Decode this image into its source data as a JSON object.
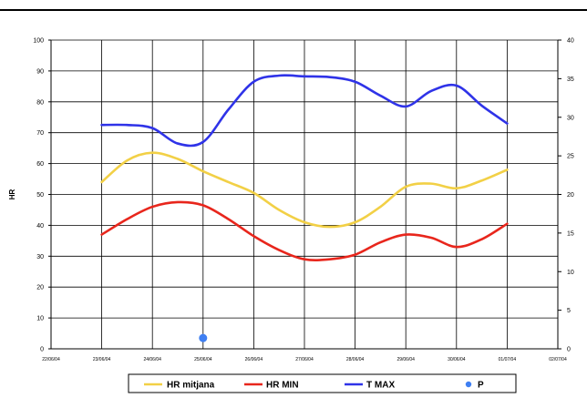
{
  "chart_data": {
    "type": "line",
    "categories": [
      "22/06/04",
      "23/06/04",
      "24/06/04",
      "25/06/04",
      "26/06/04",
      "27/06/04",
      "28/06/04",
      "29/06/04",
      "30/06/04",
      "01/07/04",
      "02/07/04"
    ],
    "ylabel": "HR",
    "ylim": [
      0,
      100
    ],
    "y_ticks": [
      "0",
      "10",
      "20",
      "30",
      "40",
      "50",
      "60",
      "70",
      "80",
      "90",
      "100"
    ],
    "y2lim": [
      0,
      40
    ],
    "y2_ticks": [
      "0",
      "5",
      "10",
      "15",
      "20",
      "25",
      "30",
      "35",
      "40"
    ],
    "grid": true,
    "legend_position": "bottom",
    "series": [
      {
        "name": "HR mitjana",
        "axis": "left",
        "color": "#f2d046",
        "x": [
          1,
          1.5,
          2,
          2.5,
          3,
          3.5,
          4,
          4.5,
          5,
          5.5,
          6,
          6.5,
          7,
          7.5,
          8,
          8.5,
          9
        ],
        "values": [
          54,
          61,
          63.5,
          61.5,
          57.5,
          54,
          50.5,
          45,
          41,
          39.5,
          41,
          46,
          52.5,
          53.5,
          52,
          54.5,
          58
        ]
      },
      {
        "name": "HR MIN",
        "axis": "left",
        "color": "#e8261c",
        "x": [
          1,
          1.5,
          2,
          2.5,
          3,
          3.5,
          4,
          4.5,
          5,
          5.5,
          6,
          6.5,
          7,
          7.5,
          8,
          8.5,
          9
        ],
        "values": [
          37,
          42,
          46,
          47.5,
          46.5,
          42,
          36.5,
          32,
          29,
          29,
          30.5,
          34.5,
          37,
          36,
          33,
          35.5,
          40.5
        ]
      },
      {
        "name": "T MAX",
        "axis": "right",
        "color": "#2f33e8",
        "x": [
          1,
          1.5,
          2,
          2.5,
          3,
          3.5,
          4,
          4.5,
          5,
          5.5,
          6,
          6.5,
          7,
          7.5,
          8,
          8.5,
          9
        ],
        "values": [
          29,
          29,
          28.6,
          26.6,
          26.8,
          31,
          34.6,
          35.4,
          35.3,
          35.2,
          34.6,
          32.8,
          31.4,
          33.4,
          34.1,
          31.5,
          29.2
        ]
      },
      {
        "name": "P",
        "axis": "left",
        "color": "#3f7ff2",
        "marker": "dot",
        "x": [
          3
        ],
        "values": [
          3.5
        ]
      }
    ]
  }
}
